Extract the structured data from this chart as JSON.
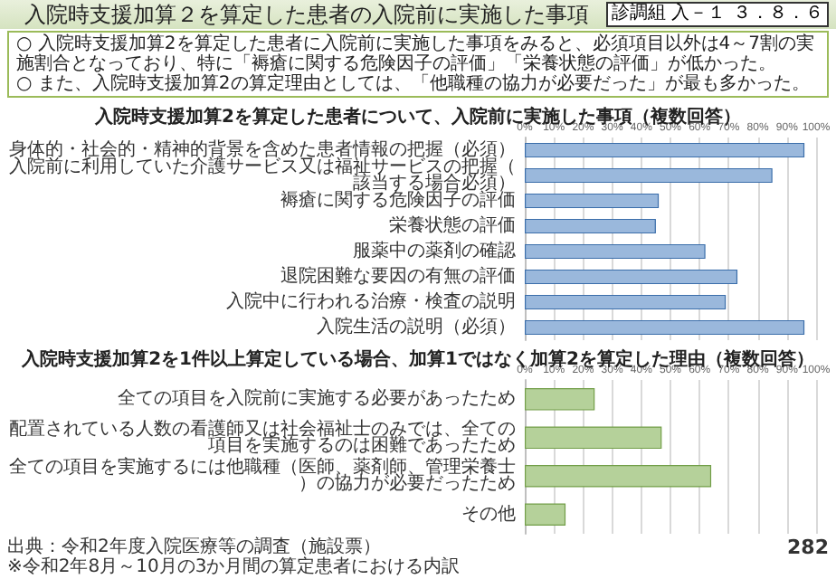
{
  "chart_data": [
    {
      "type": "bar",
      "orientation": "horizontal",
      "title": "入院時支援加算2を算定した患者について、入院前に実施した事項（複数回答）",
      "categories": [
        "身体的・社会的・精神的背景を含めた患者情報の把握（必須）",
        "入院前に利用していた介護サービス又は福祉サービスの把握（該当する場合必須）",
        "褥瘡に関する危険因子の評価",
        "栄養状態の評価",
        "服薬中の薬剤の確認",
        "退院困難な要因の有無の評価",
        "入院中に行われる治療・検査の説明",
        "入院生活の説明（必須）"
      ],
      "values": [
        96,
        85,
        46,
        45,
        62,
        73,
        69,
        96
      ],
      "color": "#9ab8dc",
      "xlim": [
        0,
        100
      ],
      "xticks": [
        {
          "value": 0,
          "label": "0%"
        },
        {
          "value": 10,
          "label": "10%"
        },
        {
          "value": 20,
          "label": "20%"
        },
        {
          "value": 30,
          "label": "30%"
        },
        {
          "value": 40,
          "label": "40%"
        },
        {
          "value": 50,
          "label": "50%"
        },
        {
          "value": 60,
          "label": "60%"
        },
        {
          "value": 70,
          "label": "70%"
        },
        {
          "value": 80,
          "label": "80%"
        },
        {
          "value": 90,
          "label": "90%"
        },
        {
          "value": 100,
          "label": "100%"
        }
      ],
      "grid": "x",
      "annotations": [
        "入院時支援加算２を算定した患者の入院前に実施した事項",
        "○ 入院時支援加算2を算定した患者に入院前に実施した事項をみると、必須項目以外は4～7割の実施割合となっており、特に「褥瘡に関する危険因子の評価」「栄養状態の評価」が低かった。",
        "○ また、入院時支援加算2の算定理由としては、「他職種の協力が必要だった」が最も多かった。",
        "診調組 入－１",
        "３．８．６"
      ]
    },
    {
      "type": "bar",
      "orientation": "horizontal",
      "title": "入院時支援加算2を1件以上算定している場合、加算1ではなく加算2を算定した理由（複数回答）",
      "categories": [
        "全ての項目を入院前に実施する必要があったため",
        "配置されている人数の看護師又は社会福祉士のみでは、全ての項目を実施するのは困難であったため",
        "全ての項目を実施するには他職種（医師、薬剤師、管理栄養士）の協力が必要だったため",
        "その他"
      ],
      "values": [
        24,
        47,
        64,
        14
      ],
      "color": "#b5d19a",
      "xlim": [
        0,
        100
      ],
      "xticks": [
        {
          "value": 0,
          "label": "0%"
        },
        {
          "value": 10,
          "label": "10%"
        },
        {
          "value": 20,
          "label": "20%"
        },
        {
          "value": 30,
          "label": "30%"
        },
        {
          "value": 40,
          "label": "40%"
        },
        {
          "value": 50,
          "label": "50%"
        },
        {
          "value": 60,
          "label": "60%"
        },
        {
          "value": 70,
          "label": "70%"
        },
        {
          "value": 80,
          "label": "80%"
        },
        {
          "value": 90,
          "label": "90%"
        },
        {
          "value": 100,
          "label": "100%"
        }
      ],
      "grid": "x",
      "annotations": [
        "出典：令和2年度入院医療等の調査（施設票）",
        "※令和2年8月～10月の3か月間の算定患者における内訳",
        "282"
      ]
    }
  ]
}
